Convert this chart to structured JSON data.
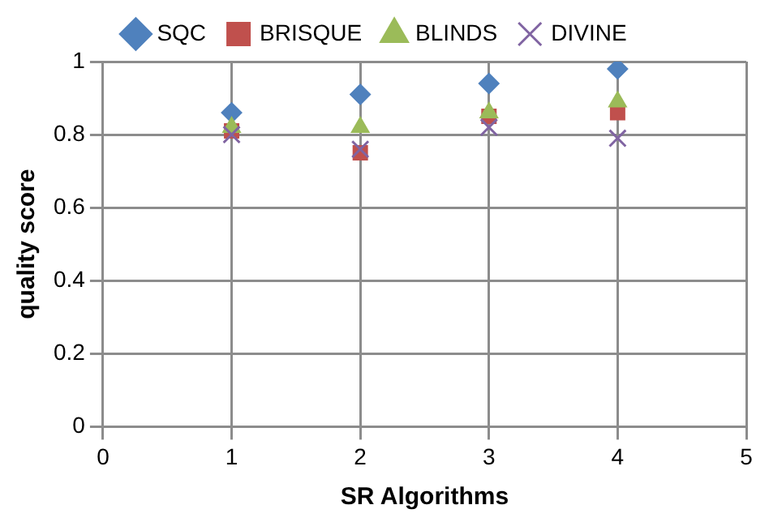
{
  "chart_data": {
    "type": "scatter",
    "xlabel": "SR Algorithms",
    "ylabel": "quality score",
    "x": [
      1,
      2,
      3,
      4
    ],
    "series": [
      {
        "name": "SQC",
        "color": "#4f81bd",
        "marker": "diamond",
        "values": [
          0.86,
          0.91,
          0.94,
          0.98
        ]
      },
      {
        "name": "BRISQUE",
        "color": "#c0504d",
        "marker": "square",
        "values": [
          0.81,
          0.75,
          0.85,
          0.86
        ]
      },
      {
        "name": "BLINDS",
        "color": "#9bbb59",
        "marker": "triangle",
        "values": [
          0.82,
          0.82,
          0.86,
          0.89
        ]
      },
      {
        "name": "DIVINE",
        "color": "#8064a2",
        "marker": "cross",
        "values": [
          0.8,
          0.76,
          0.82,
          0.79
        ]
      }
    ],
    "xlim": [
      0,
      5
    ],
    "xticks": [
      0,
      1,
      2,
      3,
      4,
      5
    ],
    "ylim": [
      0,
      1
    ],
    "yticks": [
      0,
      0.2,
      0.4,
      0.6,
      0.8,
      1
    ],
    "grid": true,
    "legend": "top"
  }
}
